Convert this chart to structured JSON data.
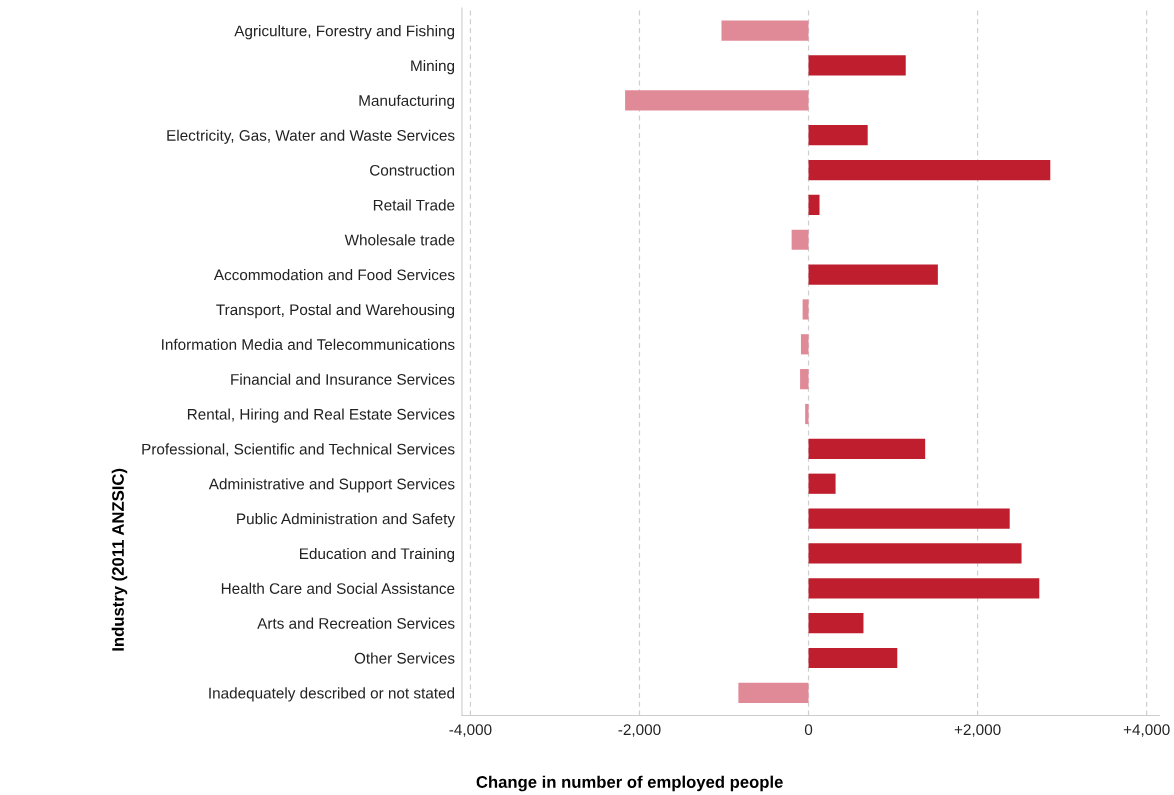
{
  "chart_data": {
    "type": "bar",
    "orientation": "horizontal",
    "xlabel": "Change in number of employed people",
    "ylabel": "Industry (2011 ANZSIC)",
    "categories": [
      "Agriculture, Forestry and Fishing",
      "Mining",
      "Manufacturing",
      "Electricity, Gas, Water and Waste Services",
      "Construction",
      "Retail Trade",
      "Wholesale trade",
      "Accommodation and Food Services",
      "Transport, Postal and Warehousing",
      "Information Media and Telecommunications",
      "Financial and Insurance Services",
      "Rental, Hiring and Real Estate Services",
      "Professional, Scientific and Technical Services",
      "Administrative and Support Services",
      "Public Administration and Safety",
      "Education and Training",
      "Health Care and Social Assistance",
      "Arts and Recreation Services",
      "Other Services",
      "Inadequately described or not stated"
    ],
    "values": [
      -1030,
      1150,
      -2170,
      700,
      2860,
      130,
      -200,
      1530,
      -70,
      -90,
      -100,
      -40,
      1380,
      320,
      2380,
      2520,
      2730,
      650,
      1050,
      -830
    ],
    "colors": [
      "#e08a97",
      "#be1e2d",
      "#e08a97",
      "#be1e2d",
      "#be1e2d",
      "#be1e2d",
      "#e08a97",
      "#be1e2d",
      "#e08a97",
      "#e08a97",
      "#e08a97",
      "#e08a97",
      "#be1e2d",
      "#be1e2d",
      "#be1e2d",
      "#be1e2d",
      "#be1e2d",
      "#be1e2d",
      "#be1e2d",
      "#e08a97"
    ],
    "xlim": [
      -4100,
      4150
    ],
    "xticks": [
      {
        "value": -4000,
        "label": "-4,000"
      },
      {
        "value": -2000,
        "label": "-2,000"
      },
      0,
      {
        "value": 2000,
        "label": "+2,000"
      },
      {
        "value": 4000,
        "label": "+4,000"
      }
    ],
    "grid": "x"
  }
}
